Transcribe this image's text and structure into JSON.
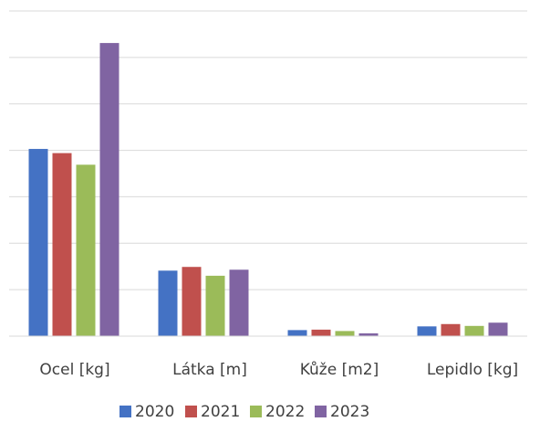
{
  "chart_data": {
    "type": "bar",
    "categories": [
      "Ocel [kg]",
      "Látka [m]",
      "Kůže [m2]",
      "Lepidlo [kg]"
    ],
    "series": [
      {
        "name": "2020",
        "color": "#4472C4",
        "values": [
          40.3,
          14.1,
          1.3,
          2.1
        ]
      },
      {
        "name": "2021",
        "color": "#C0504D",
        "values": [
          39.4,
          14.9,
          1.4,
          2.6
        ]
      },
      {
        "name": "2022",
        "color": "#9BBB59",
        "values": [
          36.9,
          13.0,
          1.1,
          2.2
        ]
      },
      {
        "name": "2023",
        "color": "#8064A2",
        "values": [
          63.1,
          14.3,
          0.6,
          2.9
        ]
      }
    ],
    "ylim": [
      0,
      70
    ],
    "grid": true,
    "legend": "bottom",
    "title": "",
    "xlabel": "",
    "ylabel": ""
  }
}
